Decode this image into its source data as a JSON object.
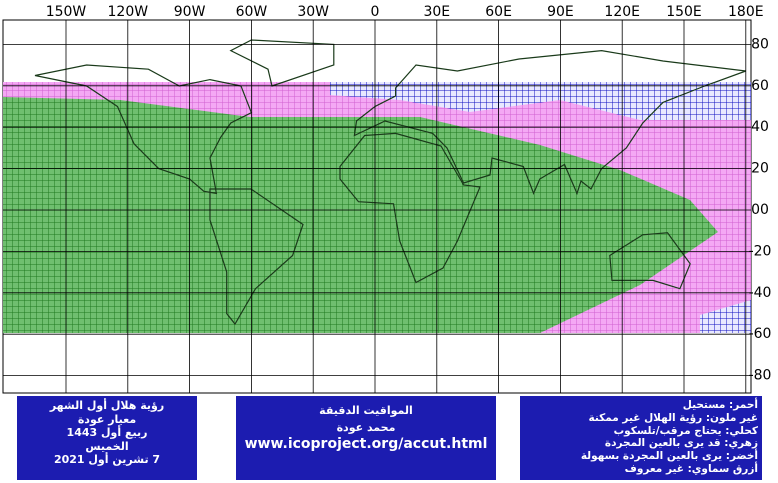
{
  "map": {
    "xticks": [
      {
        "value": -150,
        "label": "150W"
      },
      {
        "value": -120,
        "label": "120W"
      },
      {
        "value": -90,
        "label": "90W"
      },
      {
        "value": -60,
        "label": "60W"
      },
      {
        "value": -30,
        "label": "30W"
      },
      0,
      {
        "value": 30,
        "label": "30E"
      },
      {
        "value": 60,
        "label": "60E"
      },
      {
        "value": 90,
        "label": "90E"
      },
      {
        "value": 120,
        "label": "120E"
      },
      {
        "value": 150,
        "label": "150E"
      },
      {
        "value": 180,
        "label": "180E"
      }
    ],
    "yticks": [
      80,
      60,
      40,
      20,
      {
        "value": 0,
        "label": "00"
      },
      -20,
      -40,
      -60,
      -80
    ]
  },
  "info_boxes": [
    {
      "lines": [
        "رؤية هلال أول الشهر",
        "معيار عودة",
        "ربيع أول 1443",
        "الخميس",
        "7 تشرين أول 2021"
      ]
    },
    {
      "lines": [
        "المواقيت الدقيقة",
        "محمد عودة",
        "www.icoproject.org/accut.html"
      ]
    },
    {
      "lines": [
        "أحمر: مستحيل",
        "غير ملون: رؤية الهلال غير ممكنة",
        "كحلي: يحتاج مرقب/تلسكوب",
        "زهري: قد يرى بالعين المجردة",
        "أخضر: يرى بالعين المجردة بسهولة",
        "أزرق سماوي: غير معروف"
      ]
    }
  ]
}
